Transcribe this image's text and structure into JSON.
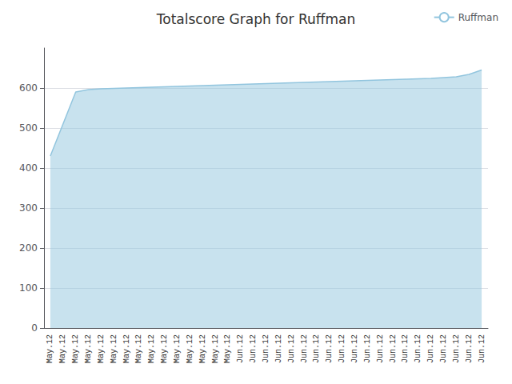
{
  "chart_data": {
    "type": "area",
    "title": "Totalscore Graph for Ruffman",
    "categories": [
      "May.12",
      "May.12",
      "May.12",
      "May.12",
      "May.12",
      "May.12",
      "May.12",
      "May.12",
      "May.12",
      "May.12",
      "May.12",
      "May.12",
      "May.12",
      "May.12",
      "May.12",
      "Jun.12",
      "Jun.12",
      "Jun.12",
      "Jun.12",
      "Jun.12",
      "Jun.12",
      "Jun.12",
      "Jun.12",
      "Jun.12",
      "Jun.12",
      "Jun.12",
      "Jun.12",
      "Jun.12",
      "Jun.12",
      "Jun.12",
      "Jun.12",
      "Jun.12",
      "Jun.12",
      "Jun.12",
      "Jun.12"
    ],
    "series": [
      {
        "name": "Ruffman",
        "color": "#92c5de",
        "values": [
          430,
          510,
          590,
          596,
          598,
          599,
          600,
          601,
          602,
          603,
          604,
          605,
          606,
          607,
          608,
          609,
          610,
          611,
          612,
          613,
          614,
          615,
          616,
          617,
          618,
          619,
          620,
          621,
          622,
          623,
          624,
          626,
          628,
          634,
          645
        ]
      }
    ],
    "ylim": [
      0,
      700
    ],
    "yticks": [
      0,
      100,
      200,
      300,
      400,
      500,
      600
    ],
    "grid": true,
    "legend": "upper right"
  }
}
